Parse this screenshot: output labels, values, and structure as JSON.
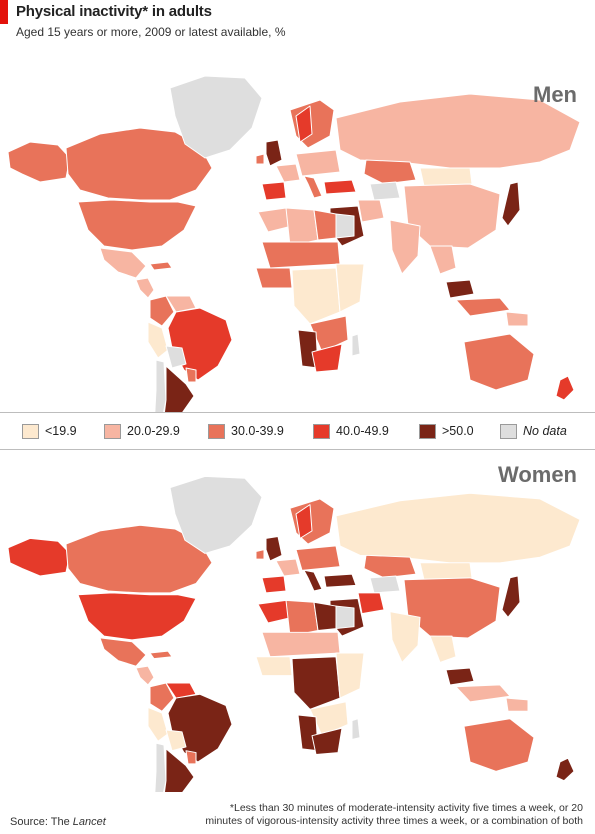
{
  "header": {
    "title": "Physical inactivity* in adults",
    "subtitle": "Aged 15 years or more, 2009 or latest available, %"
  },
  "panels": [
    {
      "label": "Men",
      "colors": {
        "canada": "#e8735a",
        "usa": "#e8735a",
        "alaska": "#e8735a",
        "greenland": "#dedede",
        "mexico": "#f7b5a2",
        "central_america": "#f7b5a2",
        "cuba": "#e8735a",
        "colombia": "#e8735a",
        "venezuela": "#f7b5a2",
        "peru": "#fde9cf",
        "brazil": "#e53a2a",
        "bolivia": "#dedede",
        "argentina": "#7a2416",
        "chile": "#dedede",
        "paraguay": "#e8735a",
        "uk": "#7a2416",
        "ireland": "#e8735a",
        "iberia": "#e53a2a",
        "france": "#f7b5a2",
        "scandinavia": "#e8735a",
        "norway": "#e53a2a",
        "central_europe": "#f7b5a2",
        "italy": "#e8735a",
        "russia": "#f7b5a2",
        "turkey": "#e53a2a",
        "kazakhstan": "#e8735a",
        "mongolia": "#fde9cf",
        "china": "#f7b5a2",
        "japan": "#7a2416",
        "india": "#f7b5a2",
        "saudi": "#7a2416",
        "iran": "#f7b5a2",
        "central_asia": "#dedede",
        "north_africa": "#f7b5a2",
        "libya": "#e8735a",
        "algeria": "#f7b5a2",
        "egypt": "#dedede",
        "sahel": "#e8735a",
        "west_africa": "#e8735a",
        "central_africa": "#fde9cf",
        "east_africa": "#fde9cf",
        "southern_africa": "#e8735a",
        "namibia": "#7a2416",
        "south_africa": "#e53a2a",
        "madagascar": "#dedede",
        "se_asia": "#f7b5a2",
        "indonesia": "#e8735a",
        "malaysia": "#7a2416",
        "australia": "#e8735a",
        "nz": "#e53a2a",
        "png": "#f7b5a2"
      }
    },
    {
      "label": "Women",
      "colors": {
        "canada": "#e8735a",
        "usa": "#e53a2a",
        "alaska": "#e53a2a",
        "greenland": "#dedede",
        "mexico": "#e8735a",
        "central_america": "#f7b5a2",
        "cuba": "#e8735a",
        "colombia": "#e8735a",
        "venezuela": "#e53a2a",
        "peru": "#fde9cf",
        "brazil": "#7a2416",
        "bolivia": "#fde9cf",
        "argentina": "#7a2416",
        "chile": "#dedede",
        "paraguay": "#e8735a",
        "uk": "#7a2416",
        "ireland": "#e8735a",
        "iberia": "#e53a2a",
        "france": "#f7b5a2",
        "scandinavia": "#e8735a",
        "norway": "#e53a2a",
        "central_europe": "#e8735a",
        "italy": "#7a2416",
        "russia": "#fde9cf",
        "turkey": "#7a2416",
        "kazakhstan": "#e8735a",
        "mongolia": "#fde9cf",
        "china": "#e8735a",
        "japan": "#7a2416",
        "india": "#fde9cf",
        "saudi": "#7a2416",
        "iran": "#e53a2a",
        "central_asia": "#dedede",
        "north_africa": "#e53a2a",
        "libya": "#7a2416",
        "algeria": "#e8735a",
        "egypt": "#dedede",
        "sahel": "#f7b5a2",
        "west_africa": "#fde9cf",
        "central_africa": "#7a2416",
        "east_africa": "#fde9cf",
        "southern_africa": "#fde9cf",
        "namibia": "#7a2416",
        "south_africa": "#7a2416",
        "madagascar": "#dedede",
        "se_asia": "#fde9cf",
        "indonesia": "#f7b5a2",
        "malaysia": "#7a2416",
        "australia": "#e8735a",
        "nz": "#7a2416",
        "png": "#f7b5a2"
      }
    }
  ],
  "legend": [
    {
      "label": "<19.9",
      "color": "#fde9cf"
    },
    {
      "label": "20.0-29.9",
      "color": "#f7b5a2"
    },
    {
      "label": "30.0-39.9",
      "color": "#e8735a"
    },
    {
      "label": "40.0-49.9",
      "color": "#e53a2a"
    },
    {
      "label": ">50.0",
      "color": "#7a2416"
    },
    {
      "label": "No data",
      "color": "#dedede"
    }
  ],
  "footer": {
    "source_prefix": "Source: The ",
    "source_name": "Lancet",
    "footnote": "*Less than 30 minutes of moderate-intensity activity five times a week, or 20 minutes of vigorous-intensity activity three times a week, or a combination of both"
  }
}
